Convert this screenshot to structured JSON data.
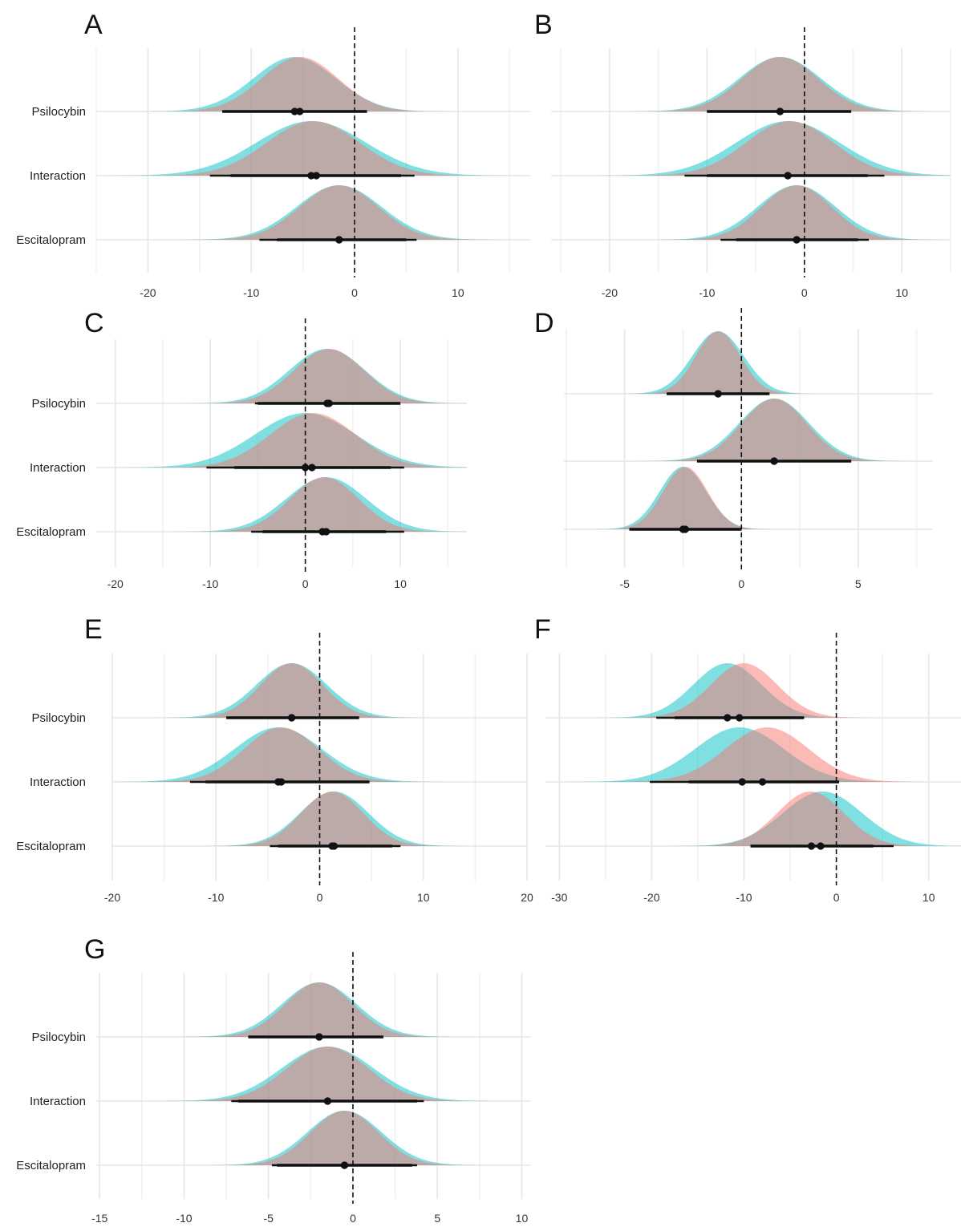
{
  "colors": {
    "density_red": "#F8766D",
    "density_teal": "#00BFC4",
    "interval": "#111111",
    "grid_major": "#E6E6E6",
    "grid_minor": "#F1F1F1",
    "zero_line": "#111111"
  },
  "chart_data": [
    {
      "panel": "A",
      "type": "density-interval",
      "rows": [
        "Psilocybin",
        "Interaction",
        "Escitalopram"
      ],
      "x_ticks": [
        "-20",
        "-10",
        "0",
        "10"
      ],
      "x_tick_values": [
        -20,
        -10,
        0,
        10
      ],
      "xlim": [
        -25,
        17
      ],
      "zero_line": 0,
      "grid": true,
      "estimates": [
        {
          "row": "Psilocybin",
          "red": {
            "mean": -5.3,
            "sd": 3.7,
            "point": -5.3,
            "ci": [
              -12.8,
              1.2
            ]
          },
          "teal": {
            "mean": -5.8,
            "sd": 4.0,
            "point": -5.8,
            "ci": [
              -12.8,
              1.2
            ]
          }
        },
        {
          "row": "Interaction",
          "red": {
            "mean": -4.0,
            "sd": 4.5,
            "point": -3.7,
            "ci": [
              -12.0,
              4.5
            ]
          },
          "teal": {
            "mean": -4.2,
            "sd": 5.3,
            "point": -4.2,
            "ci": [
              -14.0,
              5.8
            ]
          }
        },
        {
          "row": "Escitalopram",
          "red": {
            "mean": -1.5,
            "sd": 3.8,
            "point": -1.5,
            "ci": [
              -7.5,
              5.0
            ]
          },
          "teal": {
            "mean": -1.5,
            "sd": 4.1,
            "point": -1.5,
            "ci": [
              -9.2,
              6.0
            ]
          }
        }
      ]
    },
    {
      "panel": "B",
      "type": "density-interval",
      "rows": [
        "Psilocybin",
        "Interaction",
        "Escitalopram"
      ],
      "x_ticks": [
        "-20",
        "-10",
        "0",
        "10"
      ],
      "x_tick_values": [
        -20,
        -10,
        0,
        10
      ],
      "xlim": [
        -26,
        15
      ],
      "zero_line": 0,
      "grid": true,
      "estimates": [
        {
          "row": "Psilocybin",
          "red": {
            "mean": -2.5,
            "sd": 3.9,
            "point": -2.5,
            "ci": [
              -10.0,
              4.8
            ]
          },
          "teal": {
            "mean": -2.5,
            "sd": 4.2,
            "point": -2.5,
            "ci": [
              -10.0,
              4.8
            ]
          }
        },
        {
          "row": "Interaction",
          "red": {
            "mean": -1.5,
            "sd": 4.5,
            "point": -1.7,
            "ci": [
              -10.0,
              6.5
            ]
          },
          "teal": {
            "mean": -1.7,
            "sd": 5.3,
            "point": -1.7,
            "ci": [
              -12.3,
              8.2
            ]
          }
        },
        {
          "row": "Escitalopram",
          "red": {
            "mean": -0.8,
            "sd": 3.6,
            "point": -0.8,
            "ci": [
              -7.0,
              5.5
            ]
          },
          "teal": {
            "mean": -0.8,
            "sd": 4.0,
            "point": -0.8,
            "ci": [
              -8.6,
              6.6
            ]
          }
        }
      ]
    },
    {
      "panel": "C",
      "type": "density-interval",
      "rows": [
        "Psilocybin",
        "Interaction",
        "Escitalopram"
      ],
      "x_ticks": [
        "-20",
        "-10",
        "0",
        "10"
      ],
      "x_tick_values": [
        -20,
        -10,
        0,
        10
      ],
      "xlim": [
        -22,
        17
      ],
      "zero_line": 0,
      "grid": true,
      "estimates": [
        {
          "row": "Psilocybin",
          "red": {
            "mean": 2.5,
            "sd": 3.7,
            "point": 2.5,
            "ci": [
              -5.0,
              10.0
            ]
          },
          "teal": {
            "mean": 2.3,
            "sd": 4.0,
            "point": 2.3,
            "ci": [
              -5.3,
              10.0
            ]
          }
        },
        {
          "row": "Interaction",
          "red": {
            "mean": 0.8,
            "sd": 4.5,
            "point": 0.7,
            "ci": [
              -7.5,
              9.0
            ]
          },
          "teal": {
            "mean": 0.0,
            "sd": 5.3,
            "point": 0.0,
            "ci": [
              -10.4,
              10.4
            ]
          }
        },
        {
          "row": "Escitalopram",
          "red": {
            "mean": 2.0,
            "sd": 3.6,
            "point": 2.2,
            "ci": [
              -4.5,
              8.5
            ]
          },
          "teal": {
            "mean": 2.2,
            "sd": 4.2,
            "point": 1.8,
            "ci": [
              -5.7,
              10.4
            ]
          }
        }
      ]
    },
    {
      "panel": "D",
      "type": "density-interval",
      "rows": [
        "Psilocybin",
        "Interaction",
        "Escitalopram"
      ],
      "x_ticks": [
        "-5",
        "0",
        "5"
      ],
      "x_tick_values": [
        -5,
        0,
        5
      ],
      "xlim": [
        -7.6,
        8.2
      ],
      "zero_line": 0,
      "grid": true,
      "estimates": [
        {
          "row": "Psilocybin",
          "red": {
            "mean": -1.0,
            "sd": 0.95,
            "point": -1.0,
            "ci": [
              -3.2,
              1.2
            ]
          },
          "teal": {
            "mean": -1.0,
            "sd": 1.1,
            "point": -1.0,
            "ci": [
              -3.2,
              1.2
            ]
          }
        },
        {
          "row": "Interaction",
          "red": {
            "mean": 1.4,
            "sd": 1.4,
            "point": 1.4,
            "ci": [
              -1.9,
              4.7
            ]
          },
          "teal": {
            "mean": 1.4,
            "sd": 1.5,
            "point": 1.4,
            "ci": [
              -1.9,
              4.7
            ]
          }
        },
        {
          "row": "Escitalopram",
          "red": {
            "mean": -2.4,
            "sd": 0.95,
            "point": -2.4,
            "ci": [
              -4.8,
              0.0
            ]
          },
          "teal": {
            "mean": -2.5,
            "sd": 1.0,
            "point": -2.5,
            "ci": [
              -4.8,
              0.0
            ]
          }
        }
      ]
    },
    {
      "panel": "E",
      "type": "density-interval",
      "rows": [
        "Psilocybin",
        "Interaction",
        "Escitalopram"
      ],
      "x_ticks": [
        "-20",
        "-10",
        "0",
        "10",
        "20"
      ],
      "x_tick_values": [
        -20,
        -10,
        0,
        10,
        20
      ],
      "xlim": [
        -20,
        20
      ],
      "zero_line": 0,
      "grid": true,
      "estimates": [
        {
          "row": "Psilocybin",
          "red": {
            "mean": -2.7,
            "sd": 3.0,
            "point": -2.7,
            "ci": [
              -9.0,
              3.8
            ]
          },
          "teal": {
            "mean": -2.7,
            "sd": 3.4,
            "point": -2.7,
            "ci": [
              -9.0,
              3.8
            ]
          }
        },
        {
          "row": "Interaction",
          "red": {
            "mean": -3.7,
            "sd": 3.6,
            "point": -3.7,
            "ci": [
              -11.0,
              4.8
            ]
          },
          "teal": {
            "mean": -4.0,
            "sd": 4.2,
            "point": -4.0,
            "ci": [
              -12.5,
              4.8
            ]
          }
        },
        {
          "row": "Escitalopram",
          "red": {
            "mean": 1.2,
            "sd": 3.0,
            "point": 1.2,
            "ci": [
              -4.0,
              7.0
            ]
          },
          "teal": {
            "mean": 1.4,
            "sd": 3.3,
            "point": 1.4,
            "ci": [
              -4.8,
              7.8
            ]
          }
        }
      ]
    },
    {
      "panel": "F",
      "type": "density-interval",
      "rows": [
        "Psilocybin",
        "Interaction",
        "Escitalopram"
      ],
      "x_ticks": [
        "-30",
        "-20",
        "-10",
        "0",
        "10"
      ],
      "x_tick_values": [
        -30,
        -20,
        -10,
        0,
        10
      ],
      "xlim": [
        -31.5,
        13.5
      ],
      "zero_line": 0,
      "grid": true,
      "estimates": [
        {
          "row": "Psilocybin",
          "red": {
            "mean": -10.0,
            "sd": 3.6,
            "point": -10.5,
            "ci": [
              -17.5,
              -3.5
            ]
          },
          "teal": {
            "mean": -11.8,
            "sd": 3.7,
            "point": -11.8,
            "ci": [
              -19.5,
              -3.5
            ]
          }
        },
        {
          "row": "Interaction",
          "red": {
            "mean": -7.5,
            "sd": 4.5,
            "point": -8.0,
            "ci": [
              -16.0,
              0.3
            ]
          },
          "teal": {
            "mean": -10.5,
            "sd": 4.8,
            "point": -10.2,
            "ci": [
              -20.2,
              0.3
            ]
          }
        },
        {
          "row": "Escitalopram",
          "red": {
            "mean": -2.8,
            "sd": 3.6,
            "point": -2.7,
            "ci": [
              -9.3,
              4.0
            ]
          },
          "teal": {
            "mean": -1.5,
            "sd": 4.3,
            "point": -1.7,
            "ci": [
              -9.3,
              6.2
            ]
          }
        }
      ]
    },
    {
      "panel": "G",
      "type": "density-interval",
      "rows": [
        "Psilocybin",
        "Interaction",
        "Escitalopram"
      ],
      "x_ticks": [
        "-15",
        "-10",
        "-5",
        "0",
        "5",
        "10"
      ],
      "x_tick_values": [
        -15,
        -10,
        -5,
        0,
        5,
        10
      ],
      "xlim": [
        -15.2,
        10.5
      ],
      "zero_line": 0,
      "grid": true,
      "estimates": [
        {
          "row": "Psilocybin",
          "red": {
            "mean": -2.0,
            "sd": 2.0,
            "point": -2.0,
            "ci": [
              -6.2,
              1.8
            ]
          },
          "teal": {
            "mean": -2.0,
            "sd": 2.2,
            "point": -2.0,
            "ci": [
              -6.2,
              1.8
            ]
          }
        },
        {
          "row": "Interaction",
          "red": {
            "mean": -1.5,
            "sd": 2.4,
            "point": -1.5,
            "ci": [
              -6.8,
              3.8
            ]
          },
          "teal": {
            "mean": -1.5,
            "sd": 2.7,
            "point": -1.5,
            "ci": [
              -7.2,
              4.2
            ]
          }
        },
        {
          "row": "Escitalopram",
          "red": {
            "mean": -0.5,
            "sd": 2.0,
            "point": -0.5,
            "ci": [
              -4.5,
              3.5
            ]
          },
          "teal": {
            "mean": -0.5,
            "sd": 2.2,
            "point": -0.5,
            "ci": [
              -4.8,
              3.8
            ]
          }
        }
      ]
    }
  ]
}
